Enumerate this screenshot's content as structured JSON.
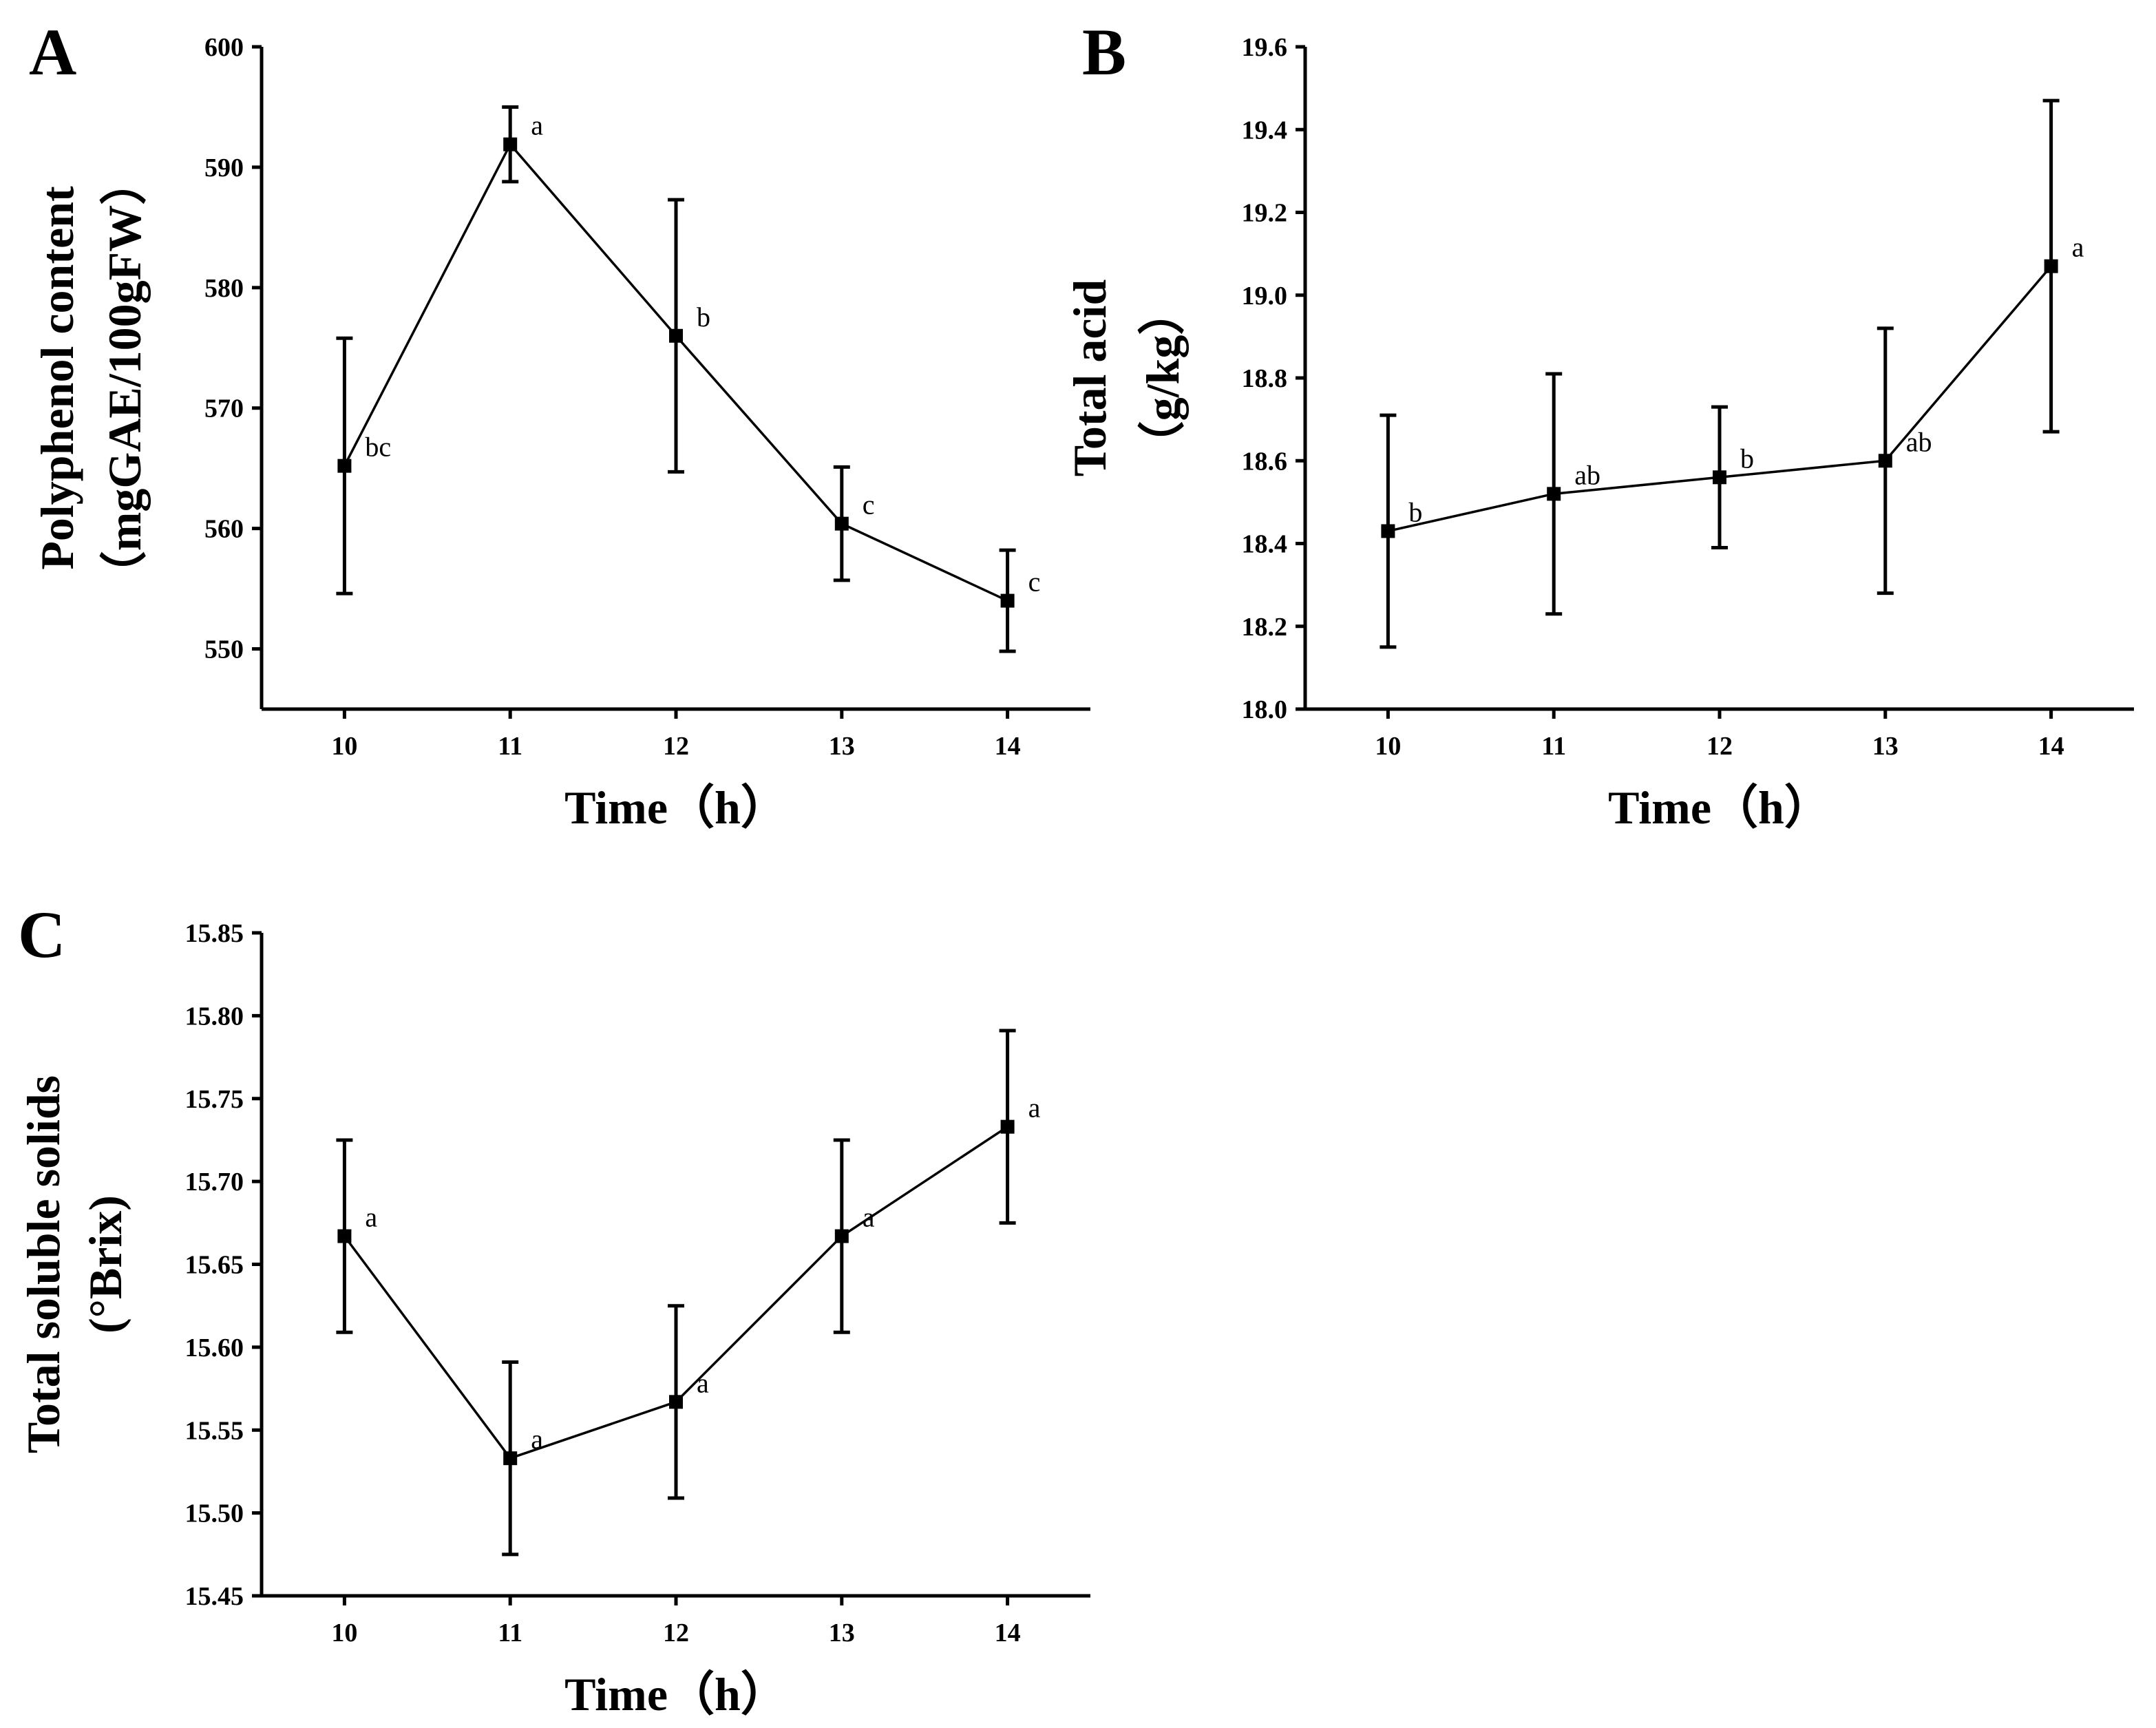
{
  "chart_data": [
    {
      "panel": "A",
      "type": "line",
      "title": "",
      "xlabel": "Time（h）",
      "ylabel_lines": [
        "Polyphenol content",
        "（mgGAE/100gFW）"
      ],
      "x": [
        10,
        11,
        12,
        13,
        14
      ],
      "x_tick_labels": [
        "10",
        "11",
        "12",
        "13",
        "14"
      ],
      "y_ticks": [
        550,
        560,
        570,
        580,
        590,
        600
      ],
      "y_tick_labels": [
        "550",
        "560",
        "570",
        "580",
        "590",
        "600"
      ],
      "xlim": [
        9.5,
        14.5
      ],
      "ylim": [
        545,
        600
      ],
      "series": [
        {
          "name": "Polyphenol content",
          "values": [
            565.2,
            591.9,
            576.0,
            560.4,
            554.0
          ],
          "error": [
            10.6,
            3.1,
            11.3,
            4.7,
            4.2
          ],
          "significance": [
            "bc",
            "a",
            "b",
            "c",
            "c"
          ]
        }
      ]
    },
    {
      "panel": "B",
      "type": "line",
      "title": "",
      "xlabel": "Time（h）",
      "ylabel_lines": [
        "Total acid",
        "（g/kg）"
      ],
      "x": [
        10,
        11,
        12,
        13,
        14
      ],
      "x_tick_labels": [
        "10",
        "11",
        "12",
        "13",
        "14"
      ],
      "y_ticks": [
        18.0,
        18.2,
        18.4,
        18.6,
        18.8,
        19.0,
        19.2,
        19.4,
        19.6
      ],
      "y_tick_labels": [
        "18.0",
        "18.2",
        "18.4",
        "18.6",
        "18.8",
        "19.0",
        "19.2",
        "19.4",
        "19.6"
      ],
      "xlim": [
        9.5,
        14.5
      ],
      "ylim": [
        18.0,
        19.6
      ],
      "series": [
        {
          "name": "Total acid",
          "values": [
            18.43,
            18.52,
            18.56,
            18.6,
            19.07
          ],
          "error": [
            0.28,
            0.29,
            0.17,
            0.32,
            0.4
          ],
          "significance": [
            "b",
            "ab",
            "b",
            "ab",
            "a"
          ]
        }
      ]
    },
    {
      "panel": "C",
      "type": "line",
      "title": "",
      "xlabel": "Time（h）",
      "ylabel_lines": [
        "Total soluble solids",
        "(°Brix)"
      ],
      "x": [
        10,
        11,
        12,
        13,
        14
      ],
      "x_tick_labels": [
        "10",
        "11",
        "12",
        "13",
        "14"
      ],
      "y_ticks": [
        15.45,
        15.5,
        15.55,
        15.6,
        15.65,
        15.7,
        15.75,
        15.8,
        15.85
      ],
      "y_tick_labels": [
        "15.45",
        "15.50",
        "15.55",
        "15.60",
        "15.65",
        "15.70",
        "15.75",
        "15.80",
        "15.85"
      ],
      "xlim": [
        9.5,
        14.5
      ],
      "ylim": [
        15.45,
        15.85
      ],
      "series": [
        {
          "name": "Total soluble solids",
          "values": [
            15.667,
            15.533,
            15.567,
            15.667,
            15.733
          ],
          "error": [
            0.058,
            0.058,
            0.058,
            0.058,
            0.058
          ],
          "significance": [
            "a",
            "a",
            "a",
            "a",
            "a"
          ]
        }
      ]
    }
  ]
}
